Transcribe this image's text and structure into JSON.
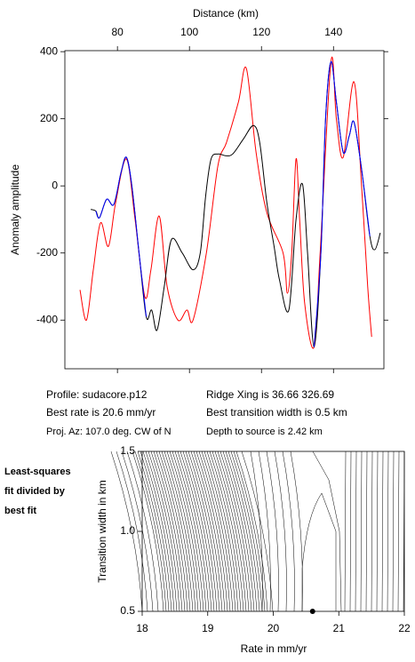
{
  "info": {
    "profile": "Profile: sudacore.p12",
    "best_rate": "Best rate is 20.6 mm/yr",
    "proj_az": "Proj. Az: 107.0 deg. CW of N",
    "ridge_xing": "Ridge Xing is 36.66 326.69",
    "best_width": "Best transition width is 0.5 km",
    "depth": "Depth to source is   2.42 km"
  },
  "side_label": [
    "Least-squares",
    "fit divided by",
    "best fit"
  ],
  "chart_data": [
    {
      "type": "line",
      "x_label": "Distance (km)",
      "y_label": "Anomaly amplitude",
      "xlim": [
        65.4,
        154
      ],
      "xticks": [
        80,
        100,
        120,
        140
      ],
      "ylim": [
        -545,
        403
      ],
      "yticks": [
        400,
        200,
        0,
        -200,
        -400
      ],
      "series": [
        {
          "color": "#ff0000",
          "x": [
            69.6,
            71.4,
            73.3,
            75.3,
            77.5,
            79.5,
            82.5,
            84.9,
            87.6,
            89.3,
            91.6,
            93.8,
            96.8,
            99.3,
            101,
            104.7,
            107.9,
            110.3,
            113.6,
            115.8,
            118.5,
            121.5,
            126,
            127.2,
            128.4,
            129.6,
            130.6,
            132,
            134.6,
            136.3,
            139.3,
            140.8,
            142.7,
            145.7,
            147.8,
            149.5,
            150.6
          ],
          "values": [
            -310,
            -400,
            -250,
            -110,
            -180,
            -50,
            80,
            -100,
            -330,
            -250,
            -90,
            -300,
            -400,
            -370,
            -400,
            -200,
            60,
            130,
            250,
            350,
            100,
            -80,
            -200,
            -320,
            -200,
            80,
            -100,
            -350,
            -480,
            -200,
            370,
            200,
            85,
            310,
            0,
            -300,
            -450
          ]
        },
        {
          "color": "#000000",
          "x": [
            72.6,
            74,
            75,
            77,
            79,
            81,
            82.5,
            84,
            86,
            88,
            89.5,
            91,
            93,
            95,
            98,
            101,
            103,
            104.5,
            106,
            108,
            110,
            112,
            115,
            117.8,
            119.5,
            121.5,
            123.5,
            125,
            127.6,
            129.6,
            131.4,
            132.8,
            134.6,
            136.5,
            137.8,
            139.3,
            140.8,
            142.7,
            144.4,
            145.7,
            147.8,
            150.1,
            151.5,
            153
          ],
          "values": [
            -70,
            -75,
            -95,
            -40,
            -55,
            40,
            85,
            0,
            -200,
            -390,
            -370,
            -430,
            -300,
            -160,
            -200,
            -250,
            -200,
            -30,
            80,
            95,
            90,
            95,
            140,
            180,
            130,
            -50,
            -180,
            -280,
            -370,
            -100,
            5,
            -200,
            -480,
            -200,
            200,
            370,
            250,
            100,
            150,
            190,
            50,
            -150,
            -190,
            -140
          ]
        },
        {
          "color": "#0000ff",
          "x": [
            74,
            75,
            77,
            79,
            81,
            82.5,
            84,
            86,
            88,
            100,
            134.6,
            136.5,
            137.8,
            139.3,
            140.8,
            142.7,
            144.4,
            145.7,
            147.8,
            150.1
          ],
          "values": [
            -75,
            -95,
            -40,
            -55,
            40,
            85,
            0,
            -200,
            -390,
            null,
            -480,
            -200,
            200,
            370,
            250,
            100,
            150,
            190,
            50,
            -150
          ]
        }
      ]
    },
    {
      "type": "contour",
      "x_label": "Rate in mm/yr",
      "y_label": "Transition width in km",
      "xlim": [
        18,
        22
      ],
      "xticks": [
        18,
        19,
        20,
        21,
        22
      ],
      "ylim": [
        0.5,
        1.5
      ],
      "yticks": [
        0.5,
        {
          "value": 1,
          "label": "1.0"
        },
        1.5
      ],
      "best_fit": {
        "x": 20.6,
        "y": 0.5
      }
    }
  ]
}
